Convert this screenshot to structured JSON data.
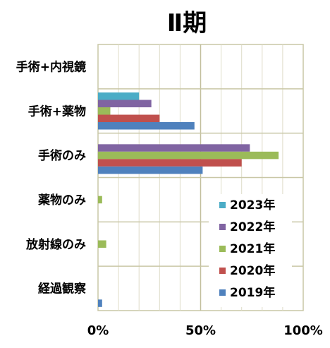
{
  "chart_data": {
    "type": "bar",
    "orientation": "horizontal",
    "title": "Ⅱ期",
    "categories": [
      "手術+内視鏡",
      "手術+薬物",
      "手術のみ",
      "薬物のみ",
      "放射線のみ",
      "経過観察"
    ],
    "x_tick_labels": [
      "0%",
      "50%",
      "100%"
    ],
    "xlim": [
      0,
      100
    ],
    "grid": true,
    "legend_position": "bottom-right",
    "series": [
      {
        "name": "2023年",
        "color": "#4bacc6",
        "values": [
          0,
          20,
          0,
          0,
          0,
          0
        ]
      },
      {
        "name": "2022年",
        "color": "#8064a2",
        "values": [
          0,
          26,
          74,
          0,
          0,
          0
        ]
      },
      {
        "name": "2021年",
        "color": "#9bbb59",
        "values": [
          0,
          6,
          88,
          2,
          4,
          0
        ]
      },
      {
        "name": "2020年",
        "color": "#c0504d",
        "values": [
          0,
          30,
          70,
          0,
          0,
          0
        ]
      },
      {
        "name": "2019年",
        "color": "#4f81bd",
        "values": [
          0,
          47,
          51,
          0,
          0,
          2
        ]
      }
    ]
  }
}
